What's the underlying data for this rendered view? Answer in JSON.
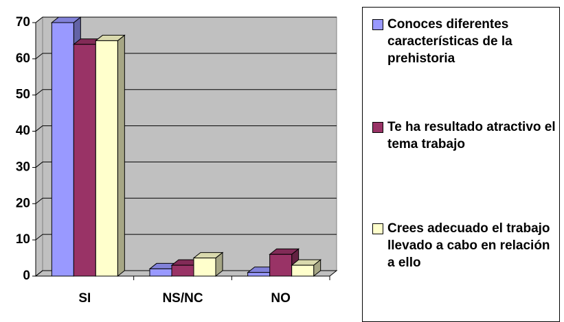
{
  "chart_data": {
    "type": "bar3d",
    "categories": [
      "SI",
      "NS/NC",
      "NO"
    ],
    "series": [
      {
        "name": "Conoces diferentes características de la prehistoria",
        "color": "#9999ff",
        "values": [
          70,
          2,
          1
        ]
      },
      {
        "name": "Te ha resultado atractivo el tema trabajo",
        "color": "#993366",
        "values": [
          64,
          3,
          6
        ]
      },
      {
        "name": "Crees adecuado el trabajo llevado a cabo en relación a ello",
        "color": "#ffffcc",
        "values": [
          65,
          5,
          3
        ]
      }
    ],
    "ylim": [
      0,
      70
    ],
    "yticks": [
      0,
      10,
      20,
      30,
      40,
      50,
      60,
      70
    ],
    "grid": true,
    "legend": "right"
  }
}
